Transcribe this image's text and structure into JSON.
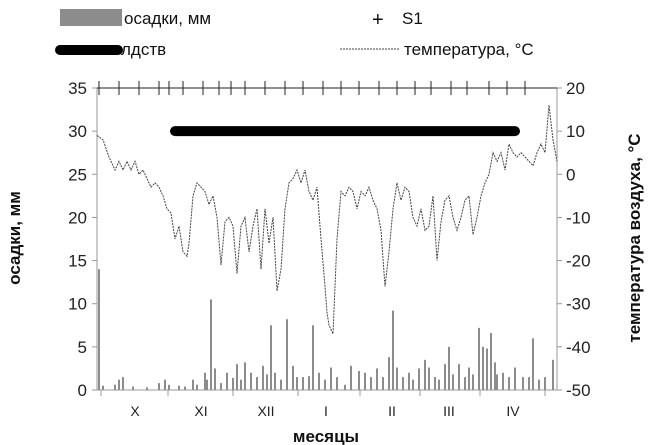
{
  "chart_data": {
    "type": "bar+line",
    "xlabel": "месяцы",
    "ylabel_left": "осадки, мм",
    "ylabel_right": "температура воздуха, °С",
    "ylim_left": [
      0,
      35
    ],
    "ylim_right": [
      -50,
      20
    ],
    "yticks_left": [
      "0",
      "5",
      "10",
      "15",
      "20",
      "25",
      "30",
      "35"
    ],
    "yticks_right": [
      "-50",
      "-40",
      "-30",
      "-20",
      "-10",
      "0",
      "10",
      "20"
    ],
    "months": [
      "X",
      "XI",
      "XII",
      "I",
      "II",
      "III",
      "IV"
    ],
    "n_days": 230,
    "grid": false,
    "legend": {
      "placement": "top",
      "precip": "осадки, мм",
      "s1": "S1",
      "ldstv": "лдств",
      "temperature": "температура, °С"
    },
    "series": [
      {
        "name": "осадки, мм",
        "kind": "bar",
        "axis": "left",
        "color": "#8c8c8c",
        "points": [
          [
            1,
            14
          ],
          [
            3,
            0.5
          ],
          [
            9,
            0.6
          ],
          [
            11,
            1.2
          ],
          [
            13,
            1.5
          ],
          [
            18,
            0.4
          ],
          [
            25,
            0.3
          ],
          [
            31,
            0.8
          ],
          [
            34,
            1.2
          ],
          [
            36,
            0.6
          ],
          [
            41,
            0.5
          ],
          [
            44,
            0.4
          ],
          [
            48,
            1.2
          ],
          [
            50,
            0.6
          ],
          [
            54,
            2
          ],
          [
            55,
            1.2
          ],
          [
            57,
            10.5
          ],
          [
            59,
            2.5
          ],
          [
            62,
            0.8
          ],
          [
            65,
            2
          ],
          [
            68,
            1.4
          ],
          [
            70,
            3
          ],
          [
            72,
            1.2
          ],
          [
            74,
            3.2
          ],
          [
            77,
            2
          ],
          [
            80,
            1.5
          ],
          [
            83,
            2.8
          ],
          [
            85,
            1.8
          ],
          [
            87,
            7.5
          ],
          [
            89,
            2
          ],
          [
            92,
            1.2
          ],
          [
            95,
            8.2
          ],
          [
            98,
            2.8
          ],
          [
            100,
            1.5
          ],
          [
            103,
            1.5
          ],
          [
            106,
            1.6
          ],
          [
            108,
            7.5
          ],
          [
            111,
            2
          ],
          [
            114,
            1.2
          ],
          [
            117,
            2.6
          ],
          [
            120,
            1.5
          ],
          [
            124,
            0.6
          ],
          [
            127,
            2.8
          ],
          [
            131,
            2.2
          ],
          [
            134,
            2
          ],
          [
            137,
            1.5
          ],
          [
            140,
            2.5
          ],
          [
            143,
            1.5
          ],
          [
            146,
            3.8
          ],
          [
            148,
            9.2
          ],
          [
            150,
            2.6
          ],
          [
            153,
            1.5
          ],
          [
            156,
            2
          ],
          [
            158,
            1.2
          ],
          [
            161,
            2.5
          ],
          [
            164,
            3.5
          ],
          [
            166,
            2.6
          ],
          [
            169,
            1.5
          ],
          [
            171,
            1.2
          ],
          [
            174,
            3
          ],
          [
            176,
            5
          ],
          [
            178,
            1.8
          ],
          [
            181,
            3
          ],
          [
            184,
            1.5
          ],
          [
            186,
            2.6
          ],
          [
            188,
            1.8
          ],
          [
            191,
            7.2
          ],
          [
            193,
            5
          ],
          [
            195,
            4.8
          ],
          [
            197,
            6.6
          ],
          [
            199,
            3.2
          ],
          [
            200,
            1.8
          ],
          [
            203,
            2
          ],
          [
            206,
            1.5
          ],
          [
            209,
            2.6
          ],
          [
            213,
            1.5
          ],
          [
            216,
            1.5
          ],
          [
            218,
            6
          ],
          [
            221,
            1.2
          ],
          [
            224,
            1.5
          ],
          [
            228,
            3.5
          ]
        ]
      },
      {
        "name": "температура, °С",
        "kind": "line",
        "axis": "right",
        "dashed": true,
        "color": "#444444",
        "points": [
          [
            0,
            9
          ],
          [
            3,
            8
          ],
          [
            6,
            4
          ],
          [
            9,
            1
          ],
          [
            11,
            3
          ],
          [
            13,
            1
          ],
          [
            15,
            3
          ],
          [
            17,
            1
          ],
          [
            19,
            3
          ],
          [
            21,
            0
          ],
          [
            23,
            1
          ],
          [
            25,
            -1
          ],
          [
            27,
            -3
          ],
          [
            29,
            -2
          ],
          [
            31,
            -3
          ],
          [
            33,
            -5
          ],
          [
            35,
            -8
          ],
          [
            37,
            -9
          ],
          [
            39,
            -15
          ],
          [
            41,
            -12
          ],
          [
            43,
            -18
          ],
          [
            45,
            -19
          ],
          [
            46,
            -16
          ],
          [
            48,
            -5
          ],
          [
            50,
            -2
          ],
          [
            52,
            -3
          ],
          [
            54,
            -4
          ],
          [
            56,
            -7
          ],
          [
            58,
            -5
          ],
          [
            60,
            -10
          ],
          [
            62,
            -21
          ],
          [
            64,
            -11
          ],
          [
            66,
            -10
          ],
          [
            68,
            -12
          ],
          [
            70,
            -23
          ],
          [
            72,
            -12
          ],
          [
            74,
            -10
          ],
          [
            76,
            -18
          ],
          [
            78,
            -12
          ],
          [
            80,
            -8
          ],
          [
            82,
            -22
          ],
          [
            84,
            -8
          ],
          [
            86,
            -16
          ],
          [
            88,
            -10
          ],
          [
            90,
            -27
          ],
          [
            92,
            -22
          ],
          [
            94,
            -8
          ],
          [
            96,
            -2
          ],
          [
            98,
            -1
          ],
          [
            100,
            1
          ],
          [
            102,
            -2
          ],
          [
            104,
            1
          ],
          [
            106,
            -4
          ],
          [
            108,
            -6
          ],
          [
            110,
            -3
          ],
          [
            112,
            -15
          ],
          [
            114,
            -26
          ],
          [
            115,
            -32
          ],
          [
            116,
            -35
          ],
          [
            118,
            -37
          ],
          [
            120,
            -15
          ],
          [
            122,
            -4
          ],
          [
            124,
            -5
          ],
          [
            126,
            -3
          ],
          [
            128,
            -4
          ],
          [
            130,
            -8
          ],
          [
            132,
            -4
          ],
          [
            134,
            -5
          ],
          [
            136,
            -3
          ],
          [
            138,
            -6
          ],
          [
            140,
            -8
          ],
          [
            142,
            -13
          ],
          [
            144,
            -26
          ],
          [
            146,
            -18
          ],
          [
            148,
            -8
          ],
          [
            150,
            -2
          ],
          [
            152,
            -6
          ],
          [
            154,
            -3
          ],
          [
            156,
            -4
          ],
          [
            158,
            -10
          ],
          [
            160,
            -12
          ],
          [
            162,
            -8
          ],
          [
            164,
            -13
          ],
          [
            166,
            -12
          ],
          [
            168,
            -5
          ],
          [
            170,
            -20
          ],
          [
            172,
            -11
          ],
          [
            174,
            -6
          ],
          [
            176,
            -5
          ],
          [
            178,
            -10
          ],
          [
            180,
            -13
          ],
          [
            182,
            -10
          ],
          [
            184,
            -6
          ],
          [
            186,
            -5
          ],
          [
            188,
            -14
          ],
          [
            190,
            -10
          ],
          [
            192,
            -5
          ],
          [
            194,
            -2
          ],
          [
            196,
            0
          ],
          [
            198,
            5
          ],
          [
            200,
            3
          ],
          [
            202,
            5
          ],
          [
            204,
            1
          ],
          [
            206,
            7
          ],
          [
            208,
            5
          ],
          [
            210,
            4
          ],
          [
            212,
            5
          ],
          [
            214,
            4
          ],
          [
            216,
            3
          ],
          [
            218,
            2
          ],
          [
            220,
            5
          ],
          [
            222,
            7
          ],
          [
            224,
            5
          ],
          [
            226,
            16
          ],
          [
            228,
            8
          ],
          [
            230,
            3
          ]
        ]
      },
      {
        "name": "S1",
        "kind": "marker",
        "axis": "left",
        "marker": "+",
        "y": 35,
        "x": [
          1,
          11,
          21,
          31,
          36,
          43,
          53,
          61,
          67,
          74,
          84,
          94,
          103,
          113,
          122,
          131,
          141,
          150,
          159,
          167,
          177,
          185,
          196,
          205,
          214
        ]
      },
      {
        "name": "лдств",
        "kind": "bar-range",
        "axis": "left",
        "y": 30,
        "x": [
          39,
          209
        ]
      }
    ]
  }
}
